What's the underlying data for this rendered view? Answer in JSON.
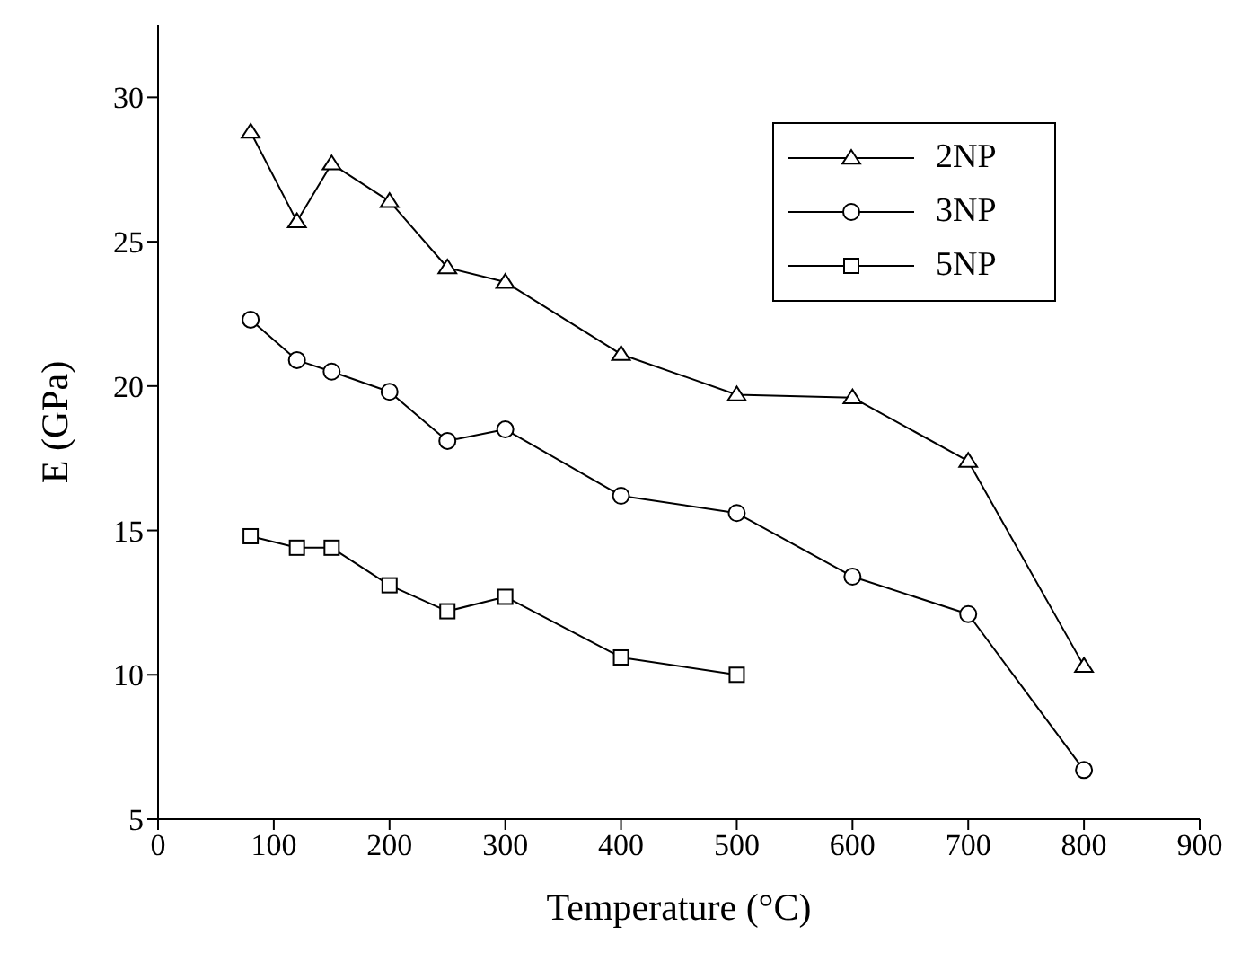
{
  "chart_data": {
    "type": "line",
    "xlabel": "Temperature (°C)",
    "ylabel": "E (GPa)",
    "x": [
      80,
      120,
      150,
      200,
      250,
      300,
      400,
      500,
      600,
      700,
      800
    ],
    "series": [
      {
        "name": "2NP",
        "color": "#000000",
        "marker": "triangle",
        "values": [
          28.8,
          25.7,
          27.7,
          26.4,
          24.1,
          23.6,
          21.1,
          19.7,
          19.6,
          17.4,
          10.3
        ]
      },
      {
        "name": "3NP",
        "color": "#000000",
        "marker": "circle",
        "values": [
          22.3,
          20.9,
          20.5,
          19.8,
          18.1,
          18.5,
          16.2,
          15.6,
          13.4,
          12.1,
          6.7
        ]
      },
      {
        "name": "5NP",
        "color": "#000000",
        "marker": "square",
        "values": [
          14.8,
          14.4,
          14.4,
          13.1,
          12.2,
          12.7,
          10.6,
          10.0,
          null,
          null,
          null
        ]
      }
    ],
    "xlim": [
      0,
      900
    ],
    "xticks": [
      0,
      100,
      200,
      300,
      400,
      500,
      600,
      700,
      800,
      900
    ],
    "ylim": [
      5,
      32.5
    ],
    "yticks": [
      5,
      10,
      15,
      20,
      25,
      30
    ],
    "grid": false,
    "legend": "top right",
    "line_style": "solid"
  }
}
